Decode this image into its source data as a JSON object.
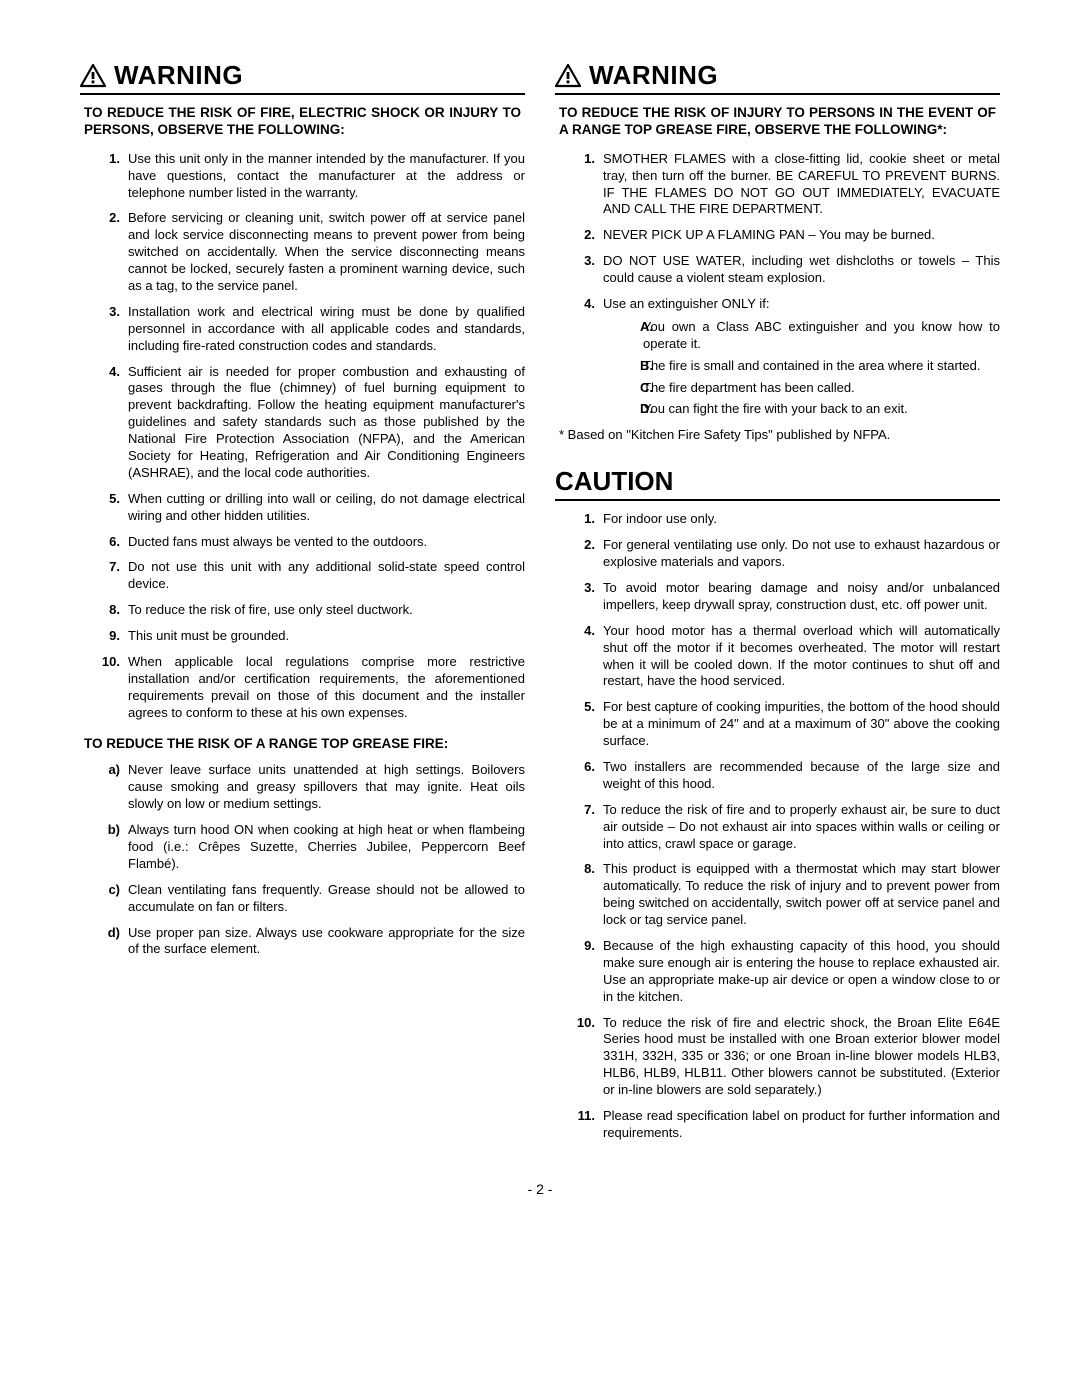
{
  "page_number": "- 2 -",
  "left": {
    "warning_label": "WARNING",
    "lead": "TO REDUCE THE RISK OF FIRE, ELECTRIC SHOCK OR INJURY TO PERSONS, OBSERVE THE FOLLOWING:",
    "items": [
      "Use this unit only in the manner intended by the manufacturer. If you have questions, contact the manufacturer at the address or telephone number listed in the warranty.",
      "Before servicing or cleaning unit, switch power off at service panel and lock service disconnecting means to prevent power from being switched on accidentally. When the service disconnecting means cannot be locked, securely fasten a prominent warning device, such as a tag, to the service panel.",
      "Installation work and electrical wiring must be done by qualified personnel in accordance with all applicable codes and standards, including fire-rated construction codes and standards.",
      "Sufficient air is needed for proper combustion and exhausting of gases through the flue (chimney) of fuel burning equipment to prevent backdrafting. Follow the heating equipment manufacturer's guidelines and safety standards such as those published by the National Fire Protection Association (NFPA), and the American Society for Heating, Refrigeration and Air Conditioning Engineers (ASHRAE), and the local code authorities.",
      "When cutting or drilling into wall or ceiling, do not damage electrical wiring and other hidden utilities.",
      "Ducted fans must always be vented to the outdoors.",
      "Do not use this unit with any additional solid-state speed control device.",
      "To reduce the risk of fire, use only steel ductwork.",
      "This unit must be grounded.",
      "When applicable local regulations comprise more restrictive installation and/or certification requirements, the aforementioned requirements prevail on those of this document and the installer agrees to conform to these at his own expenses."
    ],
    "sublead": "TO REDUCE THE RISK OF A RANGE TOP GREASE FIRE:",
    "alpha_items": [
      "Never leave surface units unattended at high settings. Boilovers cause smoking and greasy spillovers that may ignite. Heat oils slowly on low or medium settings.",
      "Always turn hood ON when cooking at high heat or when flambeing food (i.e.: Crêpes Suzette, Cherries Jubilee, Peppercorn Beef Flambé).",
      "Clean ventilating fans frequently. Grease should not be allowed to accumulate on fan or filters.",
      "Use proper pan size. Always use cookware appropriate for the size of the surface element."
    ]
  },
  "right": {
    "warning_label": "WARNING",
    "lead": "TO REDUCE THE RISK OF INJURY TO PERSONS IN THE EVENT OF A RANGE TOP GREASE FIRE, OBSERVE THE FOLLOWING*:",
    "items": [
      "SMOTHER FLAMES with a close-fitting lid, cookie sheet or metal tray, then turn off the burner. BE CAREFUL TO PREVENT BURNS. IF THE FLAMES DO NOT GO OUT IMMEDIATELY, EVACUATE AND CALL THE FIRE DEPARTMENT.",
      "NEVER PICK UP A FLAMING PAN – You may be burned.",
      "DO NOT USE WATER, including wet dishcloths or towels – This could cause a violent steam explosion.",
      "Use an extinguisher ONLY if:"
    ],
    "sub_items": [
      "You own a Class ABC extinguisher and you know how to operate it.",
      "The fire is small and contained in the area where it started.",
      "The fire department has been called.",
      "You can fight the fire with your back to an exit."
    ],
    "footnote": "* Based on \"Kitchen Fire Safety Tips\" published by NFPA.",
    "caution_label": "CAUTION",
    "caution_items": [
      "For indoor use only.",
      "For general ventilating use only. Do not use to exhaust hazardous or explosive materials and vapors.",
      "To avoid motor bearing damage and noisy and/or unbalanced impellers, keep drywall spray, construction dust, etc. off power unit.",
      "Your hood motor has a thermal overload which will automatically shut off the motor if it becomes overheated. The motor will restart when it will be cooled down. If the motor continues to shut off and restart, have the hood serviced.",
      "For best capture of cooking impurities, the bottom of the hood should be at a minimum of 24\" and at a maximum of 30\" above the cooking surface.",
      "Two installers are recommended because of the large size and weight of this hood.",
      "To reduce the risk of fire and to properly exhaust air, be sure to duct air outside – Do not exhaust air into spaces within walls or ceiling or into attics, crawl space or garage.",
      "This product is equipped with a thermostat which may start blower automatically. To reduce the risk of injury and to prevent power from being switched on accidentally, switch power off at service panel and lock or tag service panel.",
      "Because of the high exhausting capacity of this hood, you should make sure enough air is entering the house to replace exhausted air. Use an appropriate make-up air device or open a window close to or in the kitchen.",
      "To reduce the risk of fire and electric shock, the Broan Elite E64E Series hood must be installed with one Broan exterior blower model 331H, 332H, 335 or 336; or one Broan in-line blower models HLB3, HLB6, HLB9, HLB11. Other blowers cannot be substituted. (Exterior or in-line blowers are sold separately.)",
      "Please read specification label on product for further information and requirements."
    ]
  }
}
